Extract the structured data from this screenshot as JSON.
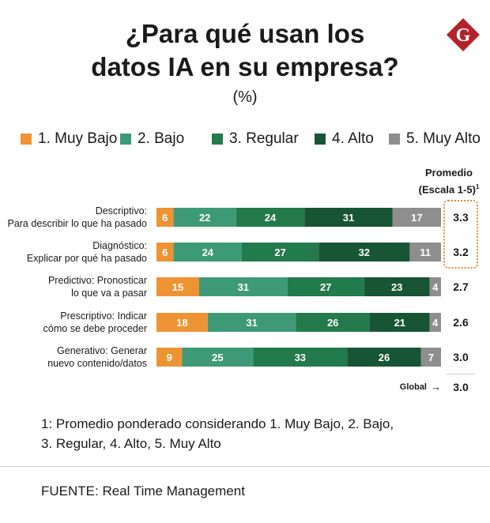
{
  "header": {
    "title_line1": "¿Para qué usan los",
    "title_line2": "datos IA en su empresa?",
    "unit": "(%)",
    "logo_letter": "G"
  },
  "colors": {
    "muy_bajo": "#ee9334",
    "bajo": "#3e9a76",
    "regular": "#237a4a",
    "alto": "#185535",
    "muy_alto": "#8e8e8e",
    "logo": "#b3232b",
    "highlight": "#e8892d"
  },
  "averages_header": {
    "line1": "Promedio",
    "line2": "(Escala 1-5)",
    "footnote_marker": "1"
  },
  "chart_data": {
    "type": "bar",
    "orientation": "horizontal",
    "stacked": true,
    "title": "¿Para qué usan los datos IA en su empresa?",
    "unit": "(%)",
    "categories": [
      [
        "Descriptivo:",
        "Para describir lo que ha pasado"
      ],
      [
        "Diagnóstico:",
        "Explicar por qué ha pasado"
      ],
      [
        "Predictivo: Pronosticar",
        "lo que va a pasar"
      ],
      [
        "Prescriptivo: Indicar",
        "cómo se debe proceder"
      ],
      [
        "Generativo: Generar",
        "nuevo contenido/datos"
      ]
    ],
    "series": [
      {
        "name": "1. Muy Bajo",
        "color_key": "muy_bajo",
        "values": [
          6,
          6,
          15,
          18,
          9
        ]
      },
      {
        "name": "2. Bajo",
        "color_key": "bajo",
        "values": [
          22,
          24,
          31,
          31,
          25
        ]
      },
      {
        "name": "3. Regular",
        "color_key": "regular",
        "values": [
          24,
          27,
          27,
          26,
          33
        ]
      },
      {
        "name": "4. Alto",
        "color_key": "alto",
        "values": [
          31,
          32,
          23,
          21,
          26
        ]
      },
      {
        "name": "5. Muy Alto",
        "color_key": "muy_alto",
        "values": [
          17,
          11,
          4,
          4,
          7
        ]
      }
    ],
    "averages": [
      "3.3",
      "3.2",
      "2.7",
      "2.6",
      "3.0"
    ],
    "highlighted_rows": [
      0,
      1
    ],
    "global": {
      "label": "Global",
      "arrow": "→",
      "value": "3.0"
    },
    "xlim": [
      0,
      100
    ],
    "legend_position": "top"
  },
  "footnote": {
    "line1": "1:  Promedio ponderado considerando 1. Muy Bajo, 2. Bajo,",
    "line2": "3. Regular, 4. Alto, 5. Muy Alto"
  },
  "source": "FUENTE: Real Time Management"
}
